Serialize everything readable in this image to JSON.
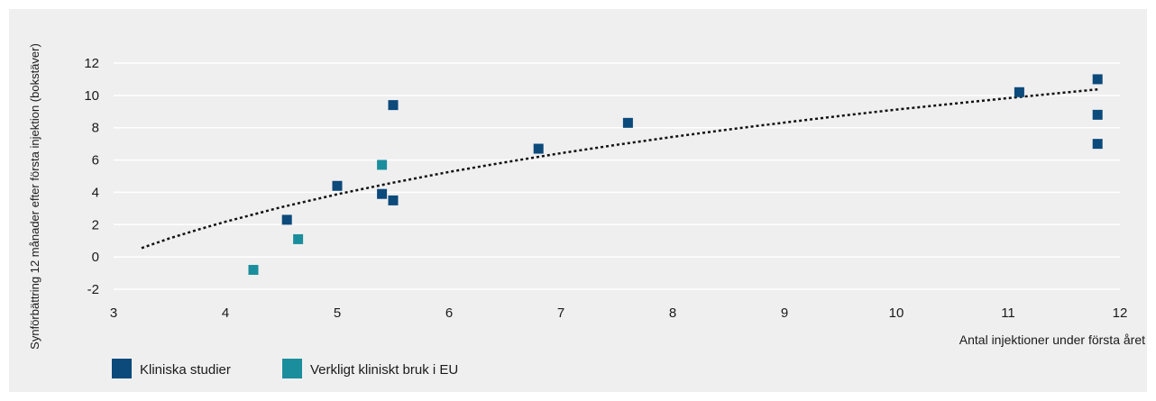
{
  "chart_data": {
    "type": "scatter",
    "xlabel": "Antal injektioner under första året",
    "ylabel": "Synförbättring 12 månader efter första injektion (bokstäver)",
    "xlim": [
      3,
      12
    ],
    "ylim": [
      -2,
      12
    ],
    "x_ticks": [
      3,
      4,
      5,
      6,
      7,
      8,
      9,
      10,
      11,
      12
    ],
    "y_ticks": [
      -2,
      0,
      2,
      4,
      6,
      8,
      10,
      12
    ],
    "grid": "horizontal",
    "legend_position": "bottom-left",
    "series": [
      {
        "name": "Kliniska studier",
        "color": "#0b4a7b",
        "points": [
          {
            "x": 4.55,
            "y": 2.3
          },
          {
            "x": 5.0,
            "y": 4.4
          },
          {
            "x": 5.4,
            "y": 3.9
          },
          {
            "x": 5.5,
            "y": 3.5
          },
          {
            "x": 5.5,
            "y": 9.4
          },
          {
            "x": 6.8,
            "y": 6.7
          },
          {
            "x": 7.6,
            "y": 8.3
          },
          {
            "x": 11.1,
            "y": 10.2
          },
          {
            "x": 11.8,
            "y": 11.0
          },
          {
            "x": 11.8,
            "y": 8.8
          },
          {
            "x": 11.8,
            "y": 7.0
          }
        ]
      },
      {
        "name": "Verkligt kliniskt bruk i EU",
        "color": "#1a8e9c",
        "points": [
          {
            "x": 4.25,
            "y": -0.8
          },
          {
            "x": 4.65,
            "y": 1.1
          },
          {
            "x": 5.4,
            "y": 5.7
          }
        ]
      }
    ],
    "trendline": {
      "style": "dotted",
      "color": "#111111",
      "x": [
        3.25,
        3.5,
        3.75,
        4.0,
        4.5,
        5.0,
        5.5,
        6.0,
        6.5,
        7.0,
        7.5,
        8.0,
        8.5,
        9.0,
        9.5,
        10.0,
        10.5,
        11.0,
        11.5,
        11.8
      ],
      "y": [
        0.55,
        1.15,
        1.68,
        2.18,
        3.08,
        3.88,
        4.6,
        5.26,
        5.86,
        6.42,
        6.94,
        7.43,
        7.89,
        8.32,
        8.73,
        9.12,
        9.48,
        9.83,
        10.17,
        10.37
      ]
    }
  }
}
